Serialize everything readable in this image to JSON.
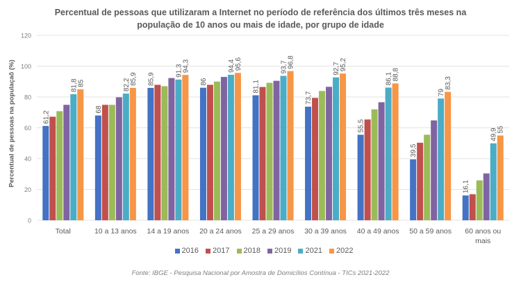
{
  "chart_data": {
    "type": "bar",
    "title": "Percentual de pessoas que utilizaram a Internet no período de referência dos últimos três meses na população de 10 anos ou mais de idade, por grupo de idade",
    "title_lines": [
      "Percentual de pessoas que utilizaram a Internet no período de referência dos últimos três meses na",
      "população de 10 anos ou mais de idade, por grupo de idade"
    ],
    "xlabel": "",
    "ylabel": "Percentual de pessoas na populaçaõ (%)",
    "ylim": [
      0,
      120
    ],
    "yticks": [
      0,
      20,
      40,
      60,
      80,
      100,
      120
    ],
    "grid": true,
    "legend_position": "bottom",
    "categories": [
      "Total",
      "10 a 13 anos",
      "14 a 19 anos",
      "20 a 24 anos",
      "25 a 29 anos",
      "30 a 39 anos",
      "40 a 49 anos",
      "50 a 59 anos",
      "60 anos ou mais"
    ],
    "category_lines": [
      [
        "Total"
      ],
      [
        "10 a 13 anos"
      ],
      [
        "14 a 19 anos"
      ],
      [
        "20 a 24 anos"
      ],
      [
        "25 a 29 anos"
      ],
      [
        "30 a 39 anos"
      ],
      [
        "40 a 49 anos"
      ],
      [
        "50 a 59 anos"
      ],
      [
        "60 anos ou",
        "mais"
      ]
    ],
    "series": [
      {
        "name": "2016",
        "color": "#4472C4",
        "values": [
          61.2,
          68,
          85.9,
          86,
          81.1,
          73.7,
          55.5,
          39.5,
          16.1
        ],
        "labels": [
          "61,2",
          "68",
          "85,9",
          "86",
          "81,1",
          "73,7",
          "55,5",
          "39,5",
          "16,1"
        ]
      },
      {
        "name": "2017",
        "color": "#C0504D",
        "values": [
          67.2,
          74.9,
          87.9,
          87.9,
          86.5,
          79.4,
          65.4,
          50.3,
          16.9
        ],
        "labels": null
      },
      {
        "name": "2018",
        "color": "#9BBB59",
        "values": [
          70.8,
          74.9,
          87.0,
          90.0,
          89.2,
          83.9,
          72.0,
          55.5,
          25.9
        ],
        "labels": null
      },
      {
        "name": "2019",
        "color": "#8064A2",
        "values": [
          74.9,
          79.8,
          92.3,
          93.0,
          90.5,
          86.6,
          76.6,
          64.8,
          30.4
        ],
        "labels": null
      },
      {
        "name": "2021",
        "color": "#4BACC6",
        "values": [
          81.8,
          82.2,
          91.3,
          94.4,
          93.7,
          92.7,
          86.1,
          79,
          49.9
        ],
        "labels": [
          "81,8",
          "82,2",
          "91,3",
          "94,4",
          "93,7",
          "92,7",
          "86,1",
          "79",
          "49,9"
        ]
      },
      {
        "name": "2022",
        "color": "#F79646",
        "values": [
          85,
          85.9,
          94.3,
          95.6,
          96.8,
          95.2,
          88.8,
          83.3,
          55
        ],
        "labels": [
          "85",
          "85,9",
          "94,3",
          "95,6",
          "96,8",
          "95,2",
          "88,8",
          "83,3",
          "55"
        ]
      }
    ],
    "source": "Fonte: IBGE - Pesquisa Nacional por Amostra de Domicílios Contínua - TICs 2021-2022"
  }
}
